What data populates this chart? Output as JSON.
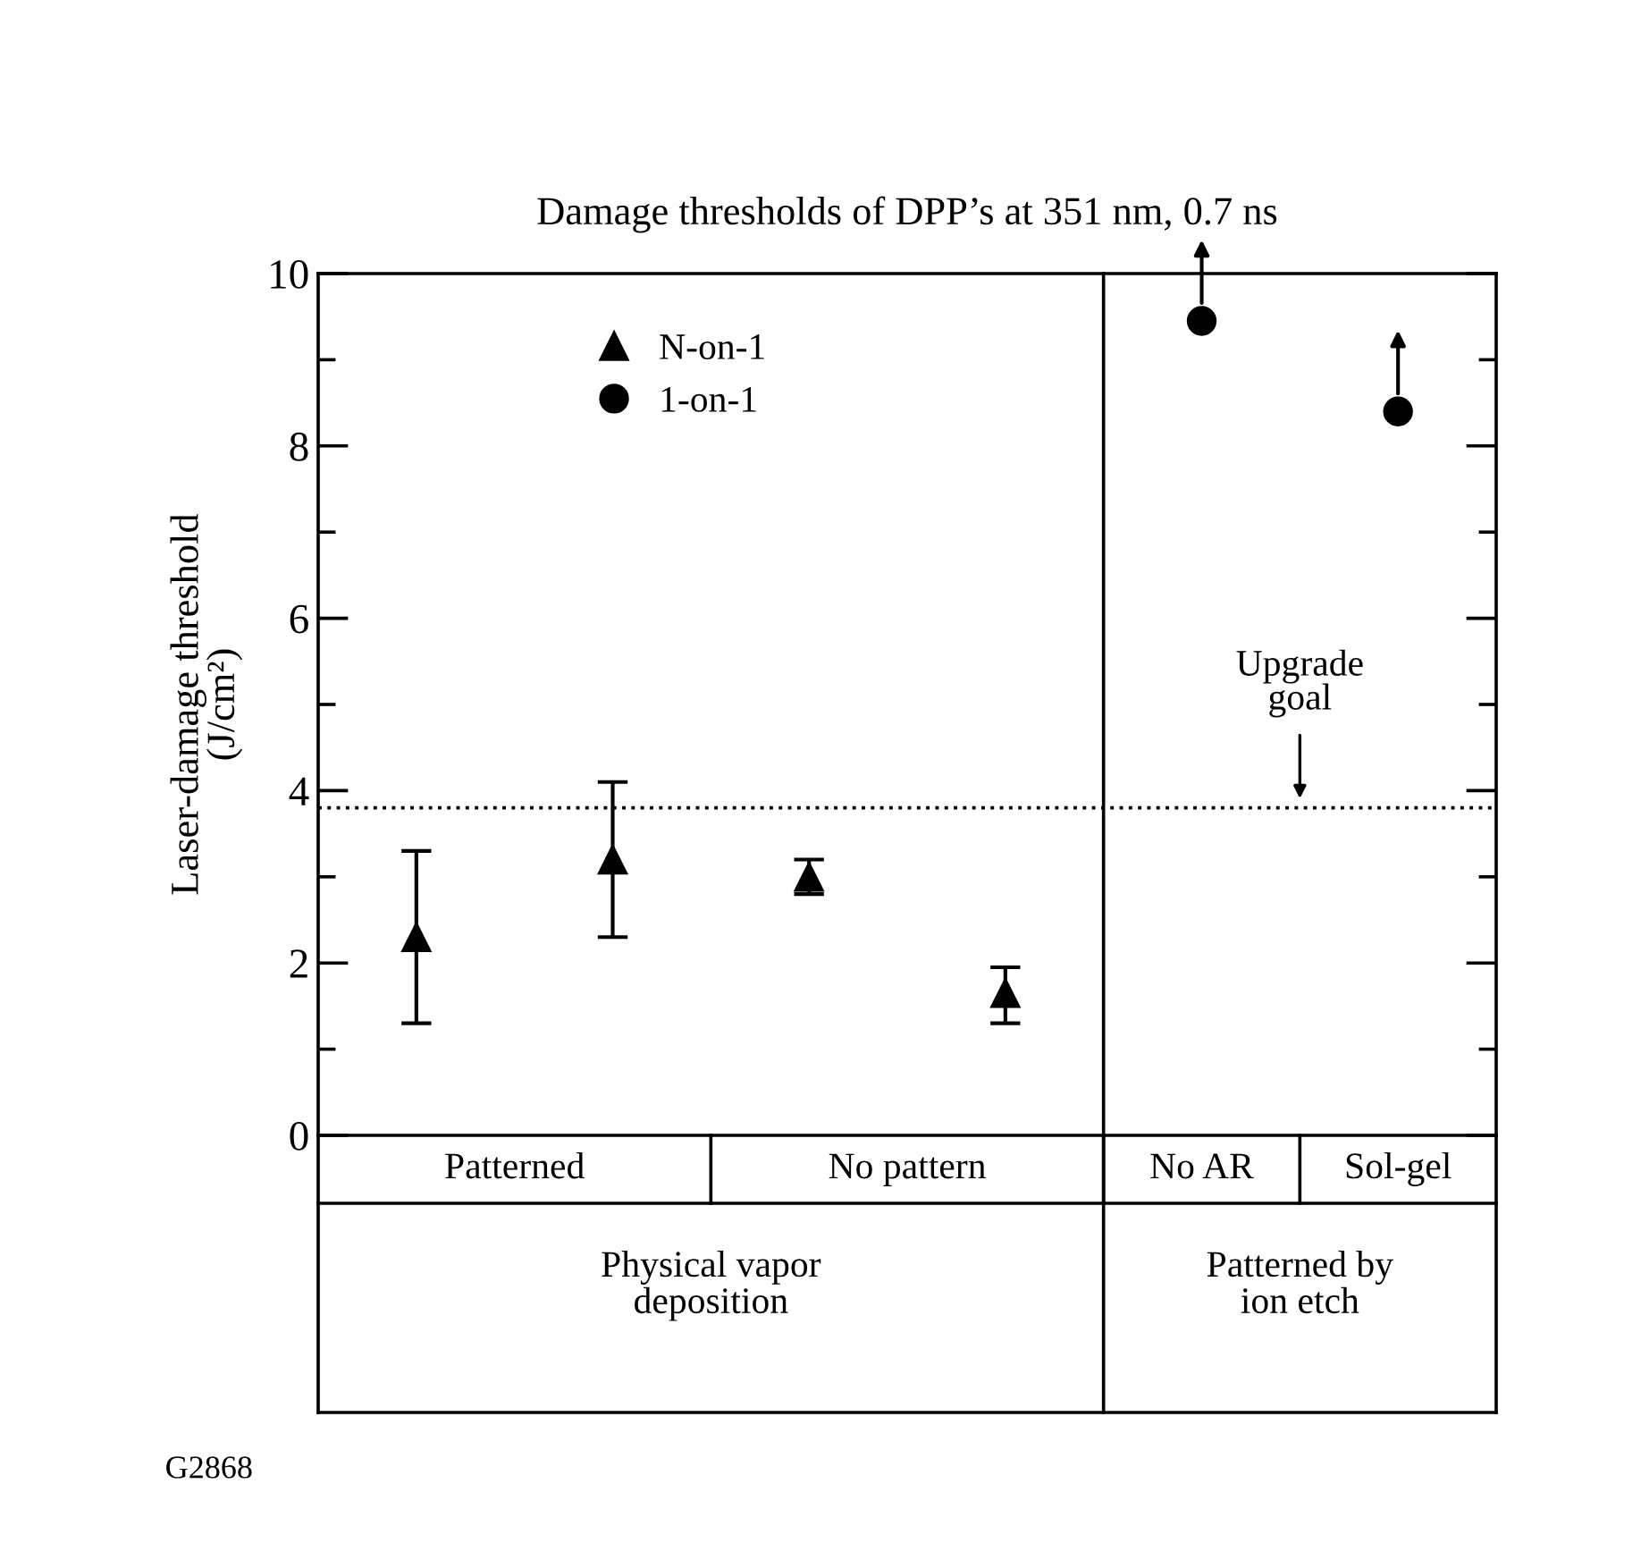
{
  "chart_data": {
    "type": "scatter",
    "title": "Damage thresholds of DPP’s at 351 nm, 0.7 ns",
    "ylabel": "Laser-damage threshold\n(J/cm²)",
    "categories": [
      null,
      null,
      null,
      null,
      null,
      null
    ],
    "series": [
      {
        "name": "N-on-1",
        "color": "#000000",
        "marker": "triangle",
        "values": [
          2.3,
          3.2,
          3.0,
          1.65,
          null,
          null
        ],
        "errors": [
          [
            1.3,
            3.3
          ],
          [
            2.3,
            4.1
          ],
          [
            2.8,
            3.2
          ],
          [
            1.3,
            1.95
          ],
          null,
          null
        ]
      },
      {
        "name": "1-on-1",
        "color": "#000000",
        "marker": "circle",
        "values": [
          null,
          null,
          null,
          null,
          9.45,
          8.4
        ]
      }
    ],
    "ylim": [
      0,
      10
    ],
    "yticks": [
      0,
      {
        "value": 1,
        "label": null
      },
      2,
      {
        "value": 3,
        "label": null
      },
      4,
      {
        "value": 5,
        "label": null
      },
      6,
      {
        "value": 7,
        "label": null
      },
      8,
      {
        "value": 9,
        "label": null
      },
      10
    ],
    "ref_lines": [
      {
        "axis": "y",
        "value": 3.8,
        "label": "Upgrade goal",
        "line_style": "dotted"
      }
    ],
    "annotations": [
      "Patterned",
      "No pattern",
      "No AR",
      "Sol-gel",
      "Physical vapor deposition",
      "Patterned by ion etch",
      "G2868"
    ],
    "legend": "top",
    "tick_labels": "y",
    "grid": false
  }
}
